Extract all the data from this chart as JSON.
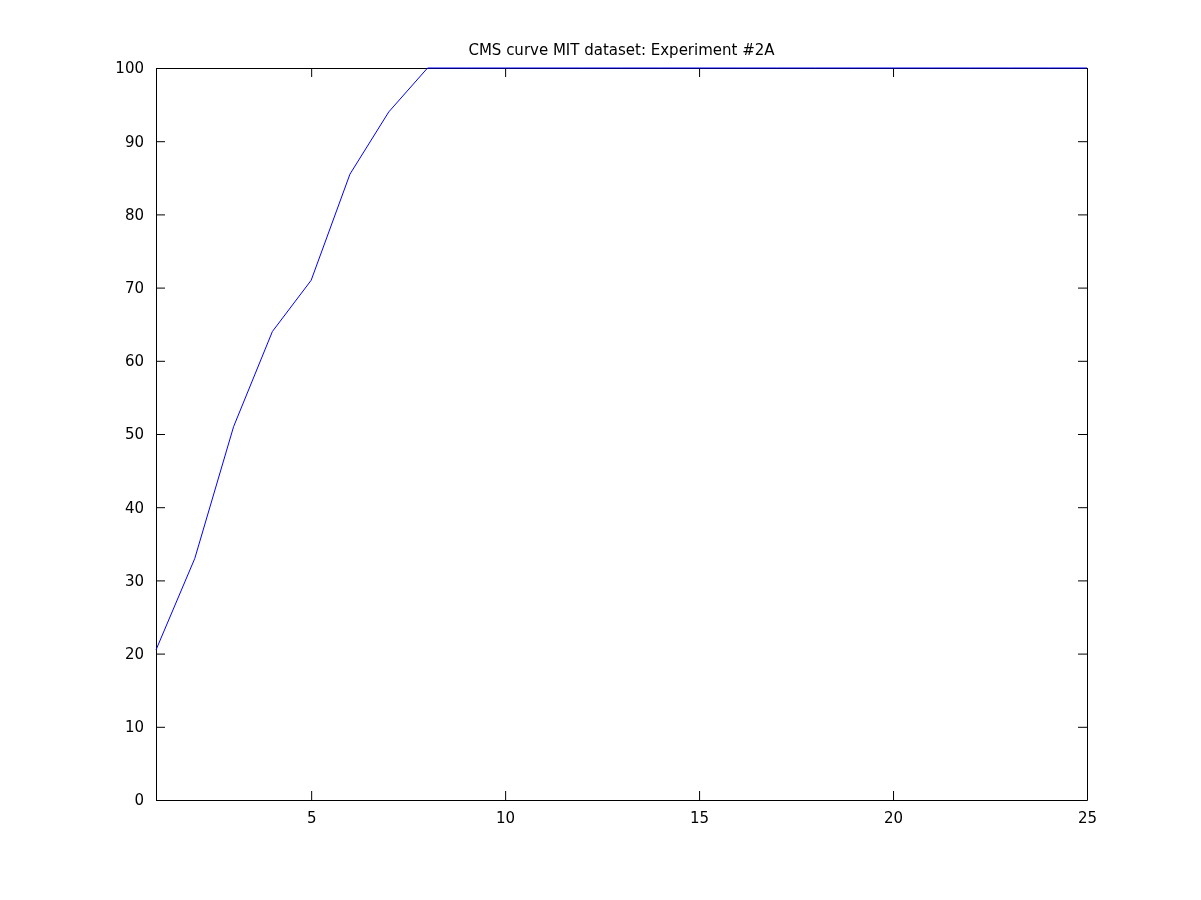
{
  "chart_data": {
    "type": "line",
    "title": "CMS curve MIT dataset: Experiment #2A",
    "x": [
      1,
      2,
      3,
      4,
      5,
      6,
      7,
      8,
      9,
      10,
      11,
      12,
      13,
      14,
      15,
      16,
      17,
      18,
      19,
      20,
      21,
      22,
      23,
      24,
      25
    ],
    "series": [
      {
        "color": "#0000ff",
        "values": [
          20.5,
          33,
          51,
          64,
          71,
          85.5,
          94,
          100,
          100,
          100,
          100,
          100,
          100,
          100,
          100,
          100,
          100,
          100,
          100,
          100,
          100,
          100,
          100,
          100,
          100
        ]
      }
    ],
    "xlim": [
      1,
      25
    ],
    "xticks": [
      5,
      10,
      15,
      20,
      25
    ],
    "ylim": [
      0,
      100
    ],
    "yticks": [
      0,
      10,
      20,
      30,
      40,
      50,
      60,
      70,
      80,
      90,
      100
    ],
    "grid": false
  }
}
